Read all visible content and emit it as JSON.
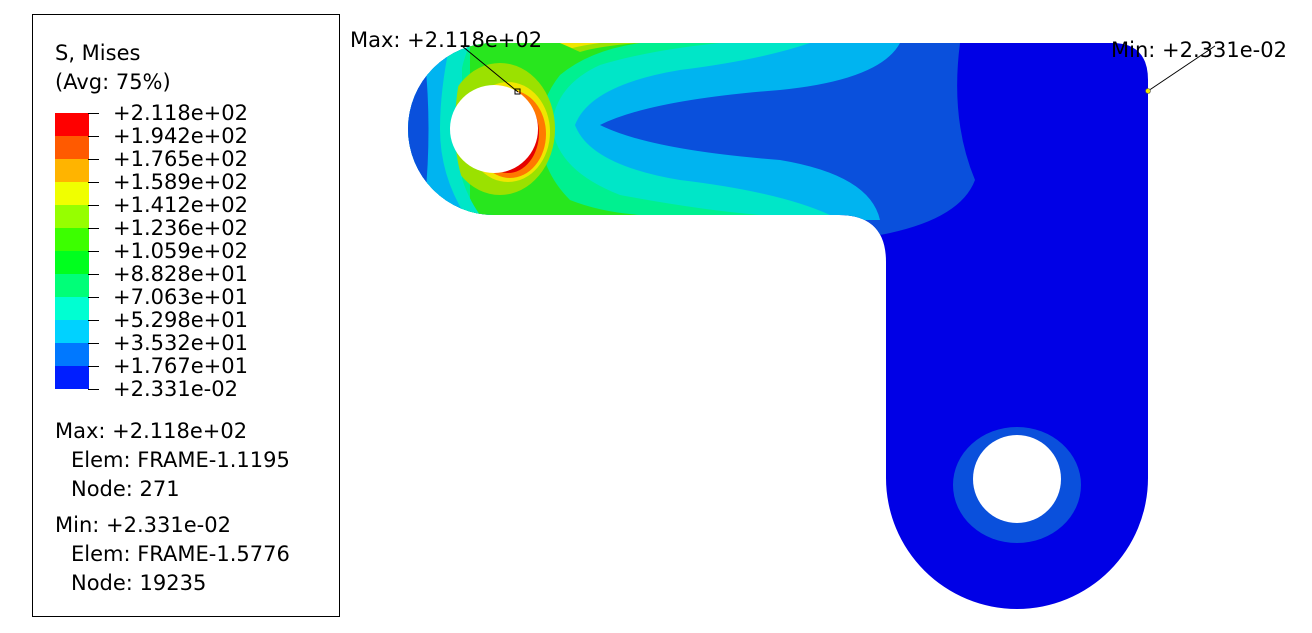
{
  "legend": {
    "title_line1": "S, Mises",
    "title_line2": "(Avg: 75%)",
    "levels": [
      {
        "label": "+2.118e+02",
        "color": "#ff0000"
      },
      {
        "label": "+1.942e+02",
        "color": "#ff5a00"
      },
      {
        "label": "+1.765e+02",
        "color": "#ffb400"
      },
      {
        "label": "+1.589e+02",
        "color": "#f0ff00"
      },
      {
        "label": "+1.412e+02",
        "color": "#96ff00"
      },
      {
        "label": "+1.236e+02",
        "color": "#3cff00"
      },
      {
        "label": "+1.059e+02",
        "color": "#00ff1e"
      },
      {
        "label": "+8.828e+01",
        "color": "#00ff78"
      },
      {
        "label": "+7.063e+01",
        "color": "#00ffd2"
      },
      {
        "label": "+5.298e+01",
        "color": "#00d2ff"
      },
      {
        "label": "+3.532e+01",
        "color": "#0078ff"
      },
      {
        "label": "+1.767e+01",
        "color": "#001eff"
      },
      {
        "label": "+2.331e-02",
        "color": null
      }
    ],
    "max": {
      "line": "Max: +2.118e+02",
      "elem": "Elem: FRAME-1.1195",
      "node": "Node: 271"
    },
    "min": {
      "line": "Min: +2.331e-02",
      "elem": "Elem: FRAME-1.5776",
      "node": "Node: 19235"
    }
  },
  "callouts": {
    "max_label": "Max: +2.118e+02",
    "min_label": "Min: +2.331e-02"
  },
  "colors": {
    "deep_blue": "#0000e6",
    "blue": "#0a50dc",
    "cyan_blue": "#00b4f0",
    "cyan": "#00e6c8",
    "green_cyan": "#00f090",
    "green": "#28e61e",
    "yellow_green": "#9be100",
    "yellow": "#f0e600",
    "orange": "#ff7800",
    "red": "#e60000"
  }
}
